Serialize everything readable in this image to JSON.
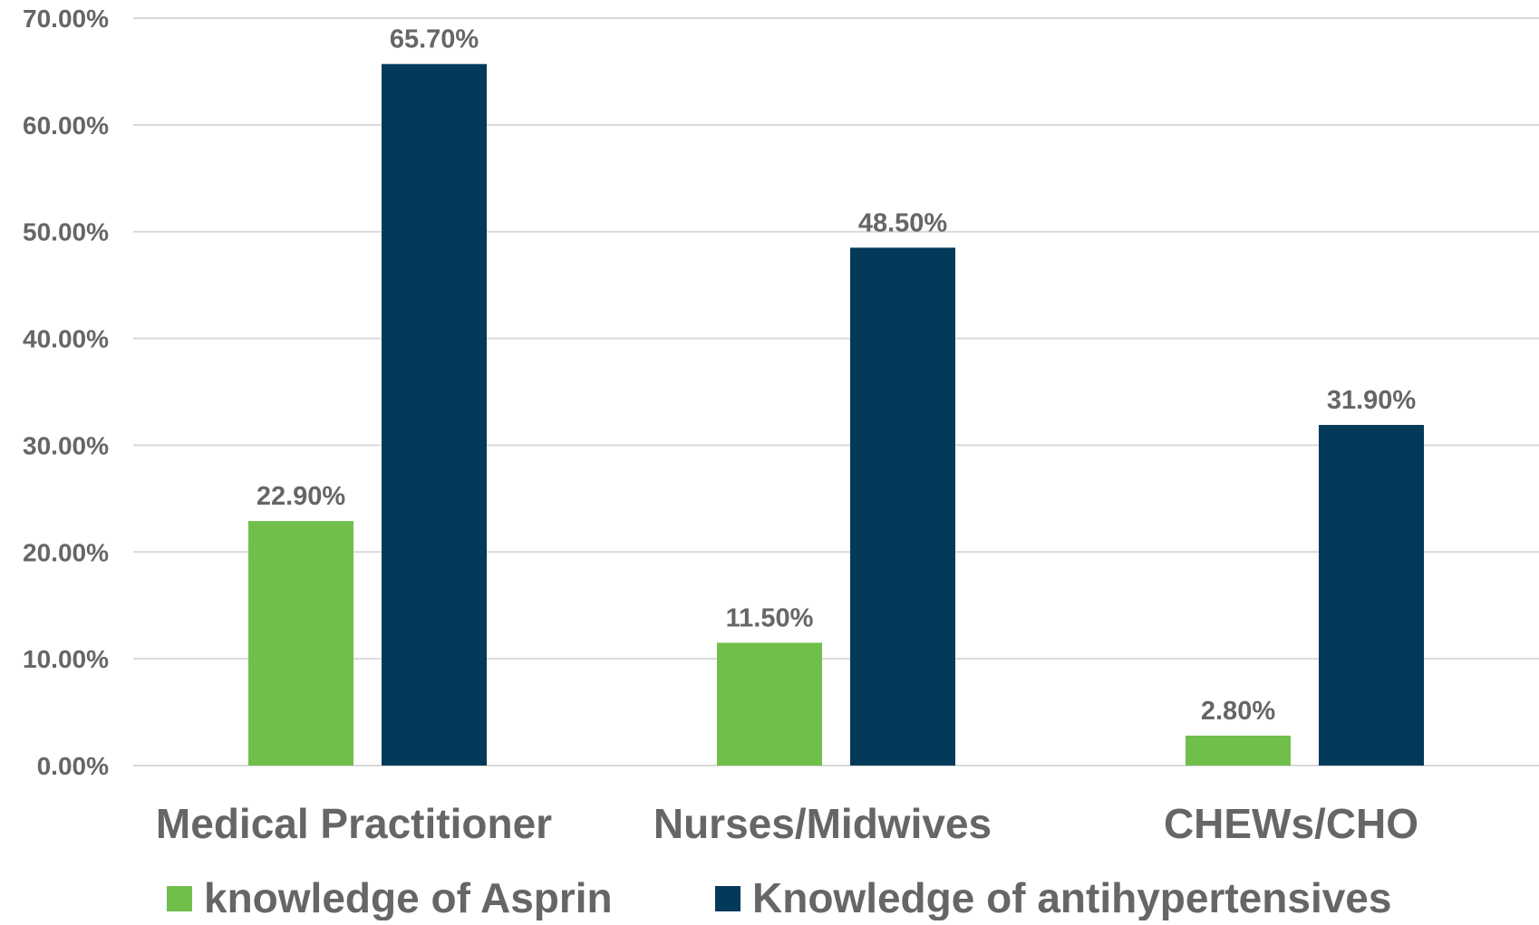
{
  "chart_data": {
    "type": "bar",
    "title": "",
    "xlabel": "",
    "ylabel": "",
    "categories": [
      "Medical Practitioner",
      "Nurses/Midwives",
      "CHEWs/CHO"
    ],
    "series": [
      {
        "name": "knowledge of Asprin",
        "color": "#70bf4b",
        "values": [
          22.9,
          11.5,
          2.8
        ],
        "labels": [
          "22.90%",
          "11.50%",
          "2.80%"
        ]
      },
      {
        "name": "Knowledge of antihypertensives",
        "color": "#033a5a",
        "values": [
          65.7,
          48.5,
          31.9
        ],
        "labels": [
          "65.70%",
          "48.50%",
          "31.90%"
        ]
      }
    ],
    "ylim": [
      0,
      70
    ],
    "yticks": [
      0,
      10,
      20,
      30,
      40,
      50,
      60,
      70
    ],
    "ytick_labels": [
      "0.00%",
      "10.00%",
      "20.00%",
      "30.00%",
      "40.00%",
      "50.00%",
      "60.00%",
      "70.00%"
    ],
    "grid": true,
    "legend_position": "bottom"
  }
}
